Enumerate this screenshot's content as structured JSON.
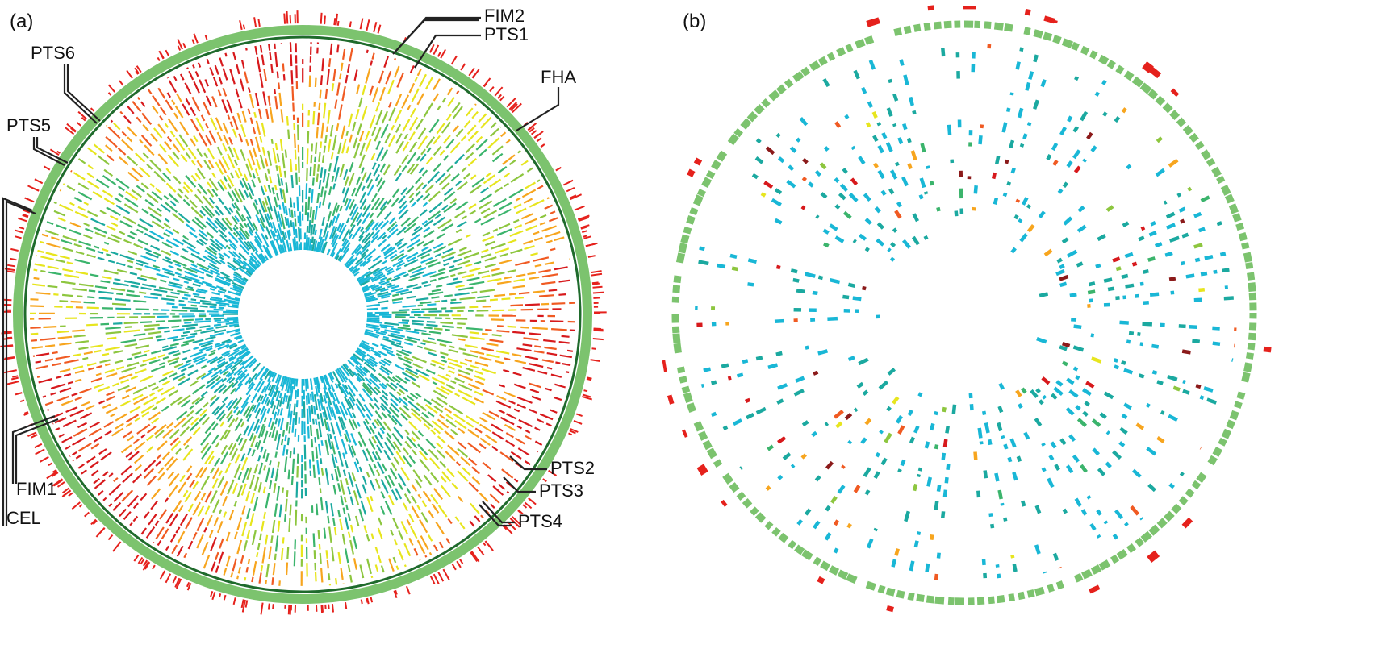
{
  "panels": [
    {
      "id": "a",
      "label": "(a)",
      "callouts": [
        "FIM2",
        "PTS1",
        "PTS6",
        "FHA",
        "PTS5",
        "FIM1",
        "CEL",
        "PTS2",
        "PTS3",
        "PTS4"
      ]
    },
    {
      "id": "b",
      "label": "(b)"
    }
  ],
  "colors": {
    "outer_ring": "#7cc36e",
    "outer_ring_dark": "#1f6b2c",
    "tick_red": "#e5211c",
    "palette": [
      "#19b7d6",
      "#1ba9a0",
      "#3bb46c",
      "#8dc63f",
      "#e7e51e",
      "#f7a51e",
      "#f05a22",
      "#d7191c",
      "#8b1a1a"
    ]
  }
}
